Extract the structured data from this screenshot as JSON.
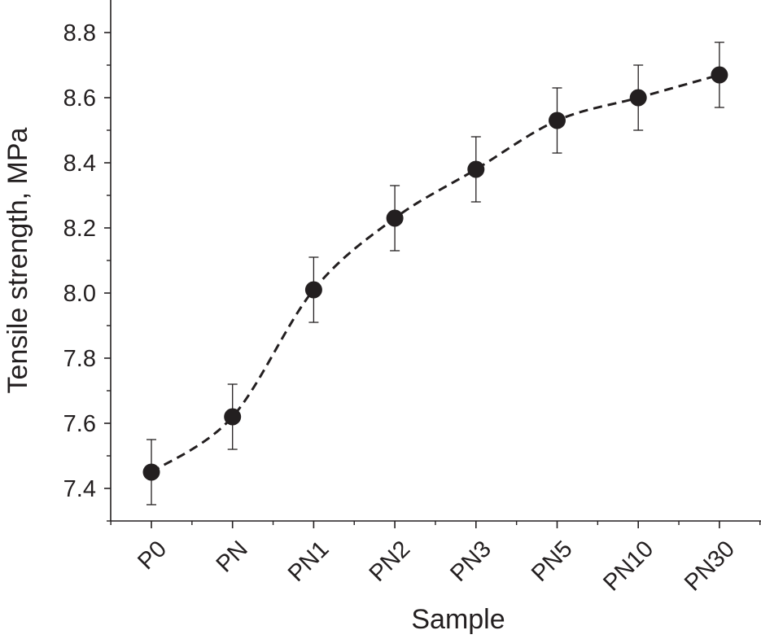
{
  "chart_data": {
    "type": "scatter",
    "xlabel": "Sample",
    "ylabel": "Tensile strength, MPa",
    "categories": [
      "P0",
      "PN",
      "PN1",
      "PN2",
      "PN3",
      "PN5",
      "PN10",
      "PN30"
    ],
    "values": [
      7.45,
      7.62,
      8.01,
      8.23,
      8.38,
      8.53,
      8.6,
      8.67
    ],
    "errors": [
      0.1,
      0.1,
      0.1,
      0.1,
      0.1,
      0.1,
      0.1,
      0.1
    ],
    "ylim": [
      7.3,
      8.9
    ],
    "yticks": [
      "7.4",
      "7.6",
      "7.8",
      "8.0",
      "8.2",
      "8.4",
      "8.6",
      "8.8"
    ],
    "connector": "dashed smooth line",
    "marker": "filled circle",
    "grid": false,
    "colors": {
      "marker": "#231f20",
      "line": "#231f20",
      "axis": "#231f20"
    }
  }
}
